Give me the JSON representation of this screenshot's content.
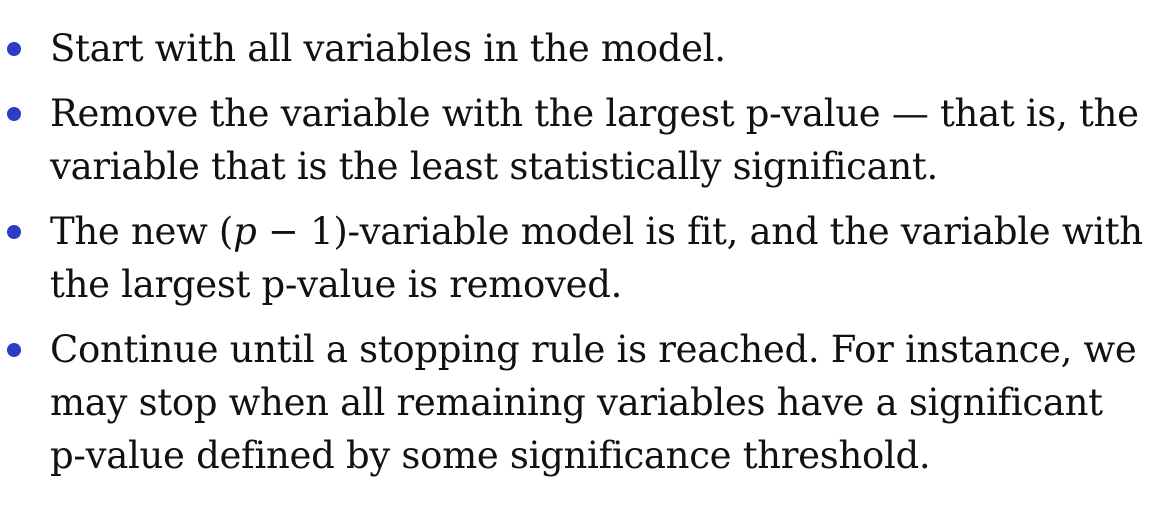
{
  "accent_color": "#2d3bc7",
  "bullets": [
    {
      "lines": [
        "Start with all variables in the model."
      ]
    },
    {
      "lines": [
        "Remove the variable with the largest p-value — that is, the",
        "variable that is the least statistically significant."
      ]
    },
    {
      "line1_pre": "The new (",
      "line1_math_p": "p",
      "line1_math_rest": " − 1)",
      "line1_post": "-variable model is fit, and the variable with",
      "lines_rest": [
        "the largest p-value is removed."
      ]
    },
    {
      "lines": [
        "Continue until a stopping rule is reached. For instance, we",
        "may stop when all remaining variables have a significant",
        "p-value defined by some significance threshold."
      ]
    }
  ]
}
